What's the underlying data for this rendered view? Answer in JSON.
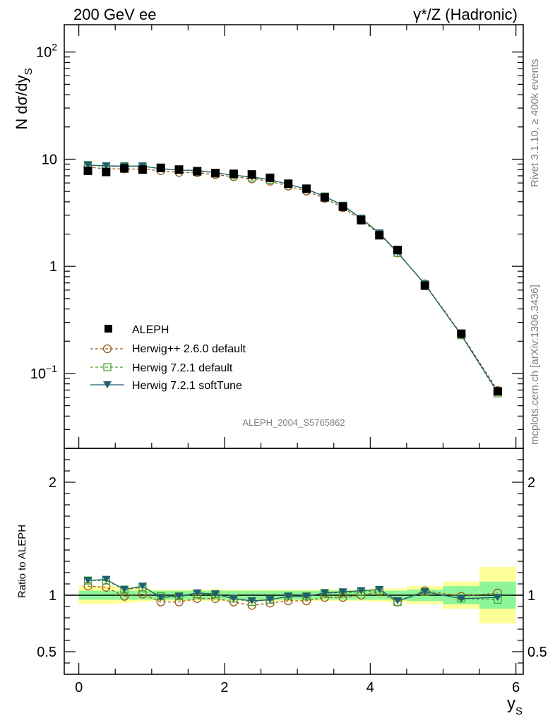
{
  "header": {
    "left": "200 GeV ee",
    "right": "γ*/Z (Hadronic)"
  },
  "side": {
    "rivet": "Rivet 3.1.10, ≥ 400k events",
    "mcplots": "mcplots.cern.ch [arXiv:1306.3436]"
  },
  "colors": {
    "aleph": "#000000",
    "hpp": "#9a5a1a",
    "h721": "#4aa526",
    "soft": "#1f5f73",
    "band_inner": "#8ef59a",
    "band_outer": "#ffff99"
  },
  "chart_data": {
    "type": "scatter",
    "watermark": "ALEPH_2004_S5765862",
    "xlabel": "y",
    "xlabel_sub": "S",
    "ylabel": "N dσ/dy",
    "ylabel_sub": "S",
    "ratio_ylabel": "Ratio to ALEPH",
    "xlim": [
      -0.2,
      6.1
    ],
    "ylim": [
      0.02,
      180
    ],
    "yscale": "log",
    "ratio_ylim": [
      0.3,
      2.3
    ],
    "xticks": [
      0,
      2,
      4,
      6
    ],
    "xtick_labels": [
      "0",
      "2",
      "4",
      "6"
    ],
    "ytick_labels": [
      {
        "value": 100,
        "base": "10",
        "exp": "2"
      },
      {
        "value": 10,
        "base": "10",
        "exp": ""
      },
      {
        "value": 1,
        "base": "1",
        "exp": ""
      },
      {
        "value": 0.1,
        "base": "10",
        "exp": "−1"
      }
    ],
    "ratio_ticks": [
      0.5,
      1,
      2
    ],
    "ratio_tick_labels": [
      "0.5",
      "1",
      "2"
    ],
    "x": [
      0.125,
      0.375,
      0.625,
      0.875,
      1.125,
      1.375,
      1.625,
      1.875,
      2.125,
      2.375,
      2.625,
      2.875,
      3.125,
      3.375,
      3.625,
      3.875,
      4.125,
      4.375,
      4.75,
      5.25,
      5.75
    ],
    "bins": [
      [
        0,
        0.25
      ],
      [
        0.25,
        0.5
      ],
      [
        0.5,
        0.75
      ],
      [
        0.75,
        1.0
      ],
      [
        1.0,
        1.25
      ],
      [
        1.25,
        1.5
      ],
      [
        1.5,
        1.75
      ],
      [
        1.75,
        2.0
      ],
      [
        2.0,
        2.25
      ],
      [
        2.25,
        2.5
      ],
      [
        2.5,
        2.75
      ],
      [
        2.75,
        3.0
      ],
      [
        3.0,
        3.25
      ],
      [
        3.25,
        3.5
      ],
      [
        3.5,
        3.75
      ],
      [
        3.75,
        4.0
      ],
      [
        4.0,
        4.25
      ],
      [
        4.25,
        4.5
      ],
      [
        4.5,
        5.0
      ],
      [
        5.0,
        5.5
      ],
      [
        5.5,
        6.0
      ]
    ],
    "band_inner": [
      0.04,
      0.04,
      0.04,
      0.04,
      0.04,
      0.04,
      0.04,
      0.04,
      0.04,
      0.04,
      0.04,
      0.04,
      0.04,
      0.04,
      0.04,
      0.04,
      0.04,
      0.04,
      0.05,
      0.08,
      0.12
    ],
    "band_outer": [
      0.08,
      0.08,
      0.07,
      0.06,
      0.05,
      0.05,
      0.05,
      0.05,
      0.05,
      0.05,
      0.05,
      0.05,
      0.05,
      0.05,
      0.05,
      0.05,
      0.06,
      0.06,
      0.08,
      0.12,
      0.25
    ],
    "series": [
      {
        "name": "ALEPH",
        "style": "square",
        "values": [
          7.8,
          7.6,
          8.2,
          8.0,
          8.3,
          8.0,
          7.7,
          7.4,
          7.3,
          7.2,
          6.7,
          5.9,
          5.3,
          4.4,
          3.6,
          2.7,
          1.95,
          1.42,
          0.66,
          0.235,
          0.068
        ]
      },
      {
        "name": "Herwig++ 2.6.0 default",
        "style": "circle-dashed",
        "ratio": [
          1.08,
          1.07,
          0.99,
          1.01,
          0.94,
          0.94,
          0.97,
          0.97,
          0.94,
          0.91,
          0.93,
          0.95,
          0.95,
          0.98,
          0.98,
          1.0,
          1.03,
          0.94,
          1.04,
          0.99,
          1.02
        ]
      },
      {
        "name": "Herwig 7.2.1 default",
        "style": "opensquare-dashed",
        "ratio": [
          1.13,
          1.13,
          1.05,
          1.07,
          0.99,
          0.99,
          1.01,
          1.01,
          0.97,
          0.94,
          0.96,
          0.99,
          0.99,
          1.02,
          1.02,
          1.03,
          1.04,
          0.94,
          1.03,
          0.97,
          0.96
        ]
      },
      {
        "name": "Herwig 7.2.1 softTune",
        "style": "triangle-solid",
        "ratio": [
          1.13,
          1.14,
          1.05,
          1.08,
          0.98,
          0.99,
          1.02,
          1.01,
          0.97,
          0.95,
          0.96,
          0.99,
          0.99,
          1.02,
          1.03,
          1.04,
          1.05,
          0.95,
          1.03,
          0.97,
          0.98
        ]
      }
    ]
  }
}
